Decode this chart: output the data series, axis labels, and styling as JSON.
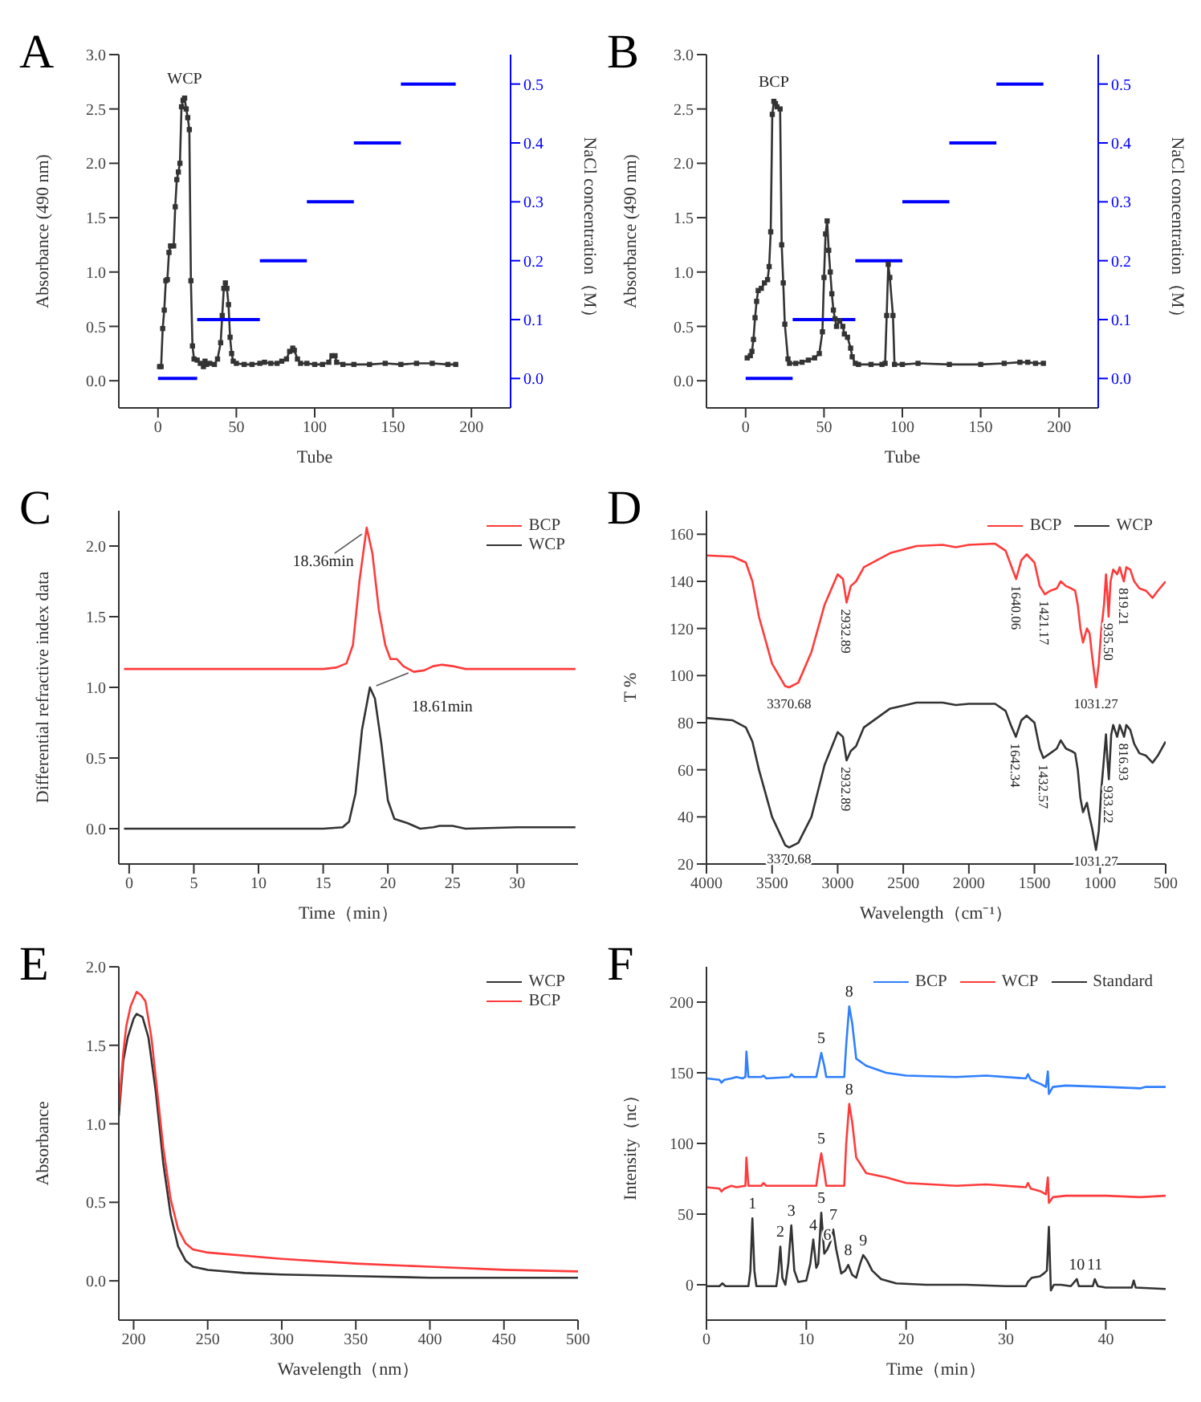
{
  "chart_data": [
    {
      "type": "line",
      "title": "A",
      "xlabel": "Tube",
      "ylabel": "Absorbance (490 nm)",
      "y2label": "NaCl concentration（M）",
      "xlim": [
        -25,
        225
      ],
      "xticks": [
        0,
        50,
        100,
        150,
        200
      ],
      "ylim": [
        -0.25,
        3
      ],
      "yticks": [
        {
          "value": 0,
          "label": "0.0"
        },
        {
          "value": 0.5,
          "label": "0.5"
        },
        {
          "value": 1,
          "label": "1.0"
        },
        {
          "value": 1.5,
          "label": "1.5"
        },
        {
          "value": 2,
          "label": "2.0"
        },
        {
          "value": 2.5,
          "label": "2.5"
        },
        {
          "value": 3,
          "label": "3.0"
        }
      ],
      "y2lim": [
        -0.05,
        0.55
      ],
      "y2ticks": [
        {
          "value": 0,
          "label": "0.0"
        },
        {
          "value": 0.1,
          "label": "0.1"
        },
        {
          "value": 0.2,
          "label": "0.2"
        },
        {
          "value": 0.3,
          "label": "0.3"
        },
        {
          "value": 0.4,
          "label": "0.4"
        },
        {
          "value": 0.5,
          "label": "0.5"
        }
      ],
      "legend": false,
      "series": [
        {
          "color": "#333333",
          "marker": "square",
          "x": [
            1,
            2,
            3,
            4,
            5,
            6,
            7,
            8,
            10,
            11,
            12,
            13,
            14,
            15,
            16,
            17,
            18,
            19,
            20,
            21,
            22,
            23,
            25,
            27,
            29,
            30,
            31,
            33,
            36,
            38,
            40,
            41,
            42,
            43,
            44,
            45,
            46,
            47,
            48,
            50,
            55,
            60,
            65,
            68,
            72,
            76,
            79,
            82,
            84,
            86,
            87,
            89,
            91,
            95,
            100,
            105,
            109,
            111,
            113,
            114,
            118,
            125,
            135,
            145,
            155,
            165,
            175,
            185,
            190
          ],
          "values": [
            0.13,
            0.13,
            0.48,
            0.65,
            0.92,
            0.93,
            1.18,
            1.24,
            1.24,
            1.6,
            1.85,
            1.92,
            2.0,
            2.52,
            2.58,
            2.6,
            2.5,
            2.42,
            2.31,
            0.92,
            0.32,
            0.2,
            0.19,
            0.16,
            0.13,
            0.18,
            0.15,
            0.16,
            0.15,
            0.2,
            0.35,
            0.6,
            0.85,
            0.9,
            0.85,
            0.7,
            0.4,
            0.25,
            0.18,
            0.16,
            0.15,
            0.15,
            0.16,
            0.17,
            0.16,
            0.16,
            0.18,
            0.2,
            0.27,
            0.3,
            0.28,
            0.2,
            0.16,
            0.16,
            0.15,
            0.15,
            0.17,
            0.23,
            0.23,
            0.17,
            0.15,
            0.15,
            0.15,
            0.16,
            0.15,
            0.16,
            0.16,
            0.15,
            0.15
          ]
        },
        {
          "color": "#0000ff",
          "axis": "y2",
          "x": [
            0,
            25
          ],
          "values": [
            0,
            0
          ]
        },
        {
          "color": "#0000ff",
          "axis": "y2",
          "x": [
            25,
            65
          ],
          "values": [
            0.1,
            0.1
          ]
        },
        {
          "color": "#0000ff",
          "axis": "y2",
          "x": [
            65,
            95
          ],
          "values": [
            0.2,
            0.2
          ]
        },
        {
          "color": "#0000ff",
          "axis": "y2",
          "x": [
            95,
            125
          ],
          "values": [
            0.3,
            0.3
          ]
        },
        {
          "color": "#0000ff",
          "axis": "y2",
          "x": [
            125,
            155
          ],
          "values": [
            0.4,
            0.4
          ]
        },
        {
          "color": "#0000ff",
          "axis": "y2",
          "x": [
            155,
            190
          ],
          "values": [
            0.5,
            0.5
          ]
        }
      ],
      "annotations": [
        {
          "text": "WCP",
          "x": 17,
          "y": 2.6
        }
      ]
    },
    {
      "type": "line",
      "title": "B",
      "xlabel": "Tube",
      "ylabel": "Absorbance (490 nm)",
      "y2label": "NaCl concentration（M）",
      "xlim": [
        -25,
        225
      ],
      "xticks": [
        0,
        50,
        100,
        150,
        200
      ],
      "ylim": [
        -0.25,
        3
      ],
      "yticks": [
        {
          "value": 0,
          "label": "0.0"
        },
        {
          "value": 0.5,
          "label": "0.5"
        },
        {
          "value": 1,
          "label": "1.0"
        },
        {
          "value": 1.5,
          "label": "1.5"
        },
        {
          "value": 2,
          "label": "2.0"
        },
        {
          "value": 2.5,
          "label": "2.5"
        },
        {
          "value": 3,
          "label": "3.0"
        }
      ],
      "y2lim": [
        -0.05,
        0.55
      ],
      "y2ticks": [
        {
          "value": 0,
          "label": "0.0"
        },
        {
          "value": 0.1,
          "label": "0.1"
        },
        {
          "value": 0.2,
          "label": "0.2"
        },
        {
          "value": 0.3,
          "label": "0.3"
        },
        {
          "value": 0.4,
          "label": "0.4"
        },
        {
          "value": 0.5,
          "label": "0.5"
        }
      ],
      "legend": false,
      "series": [
        {
          "color": "#333333",
          "marker": "square",
          "x": [
            1,
            3,
            4,
            5,
            6,
            7,
            8,
            10,
            12,
            14,
            15,
            16,
            17,
            18,
            19,
            20,
            22,
            23,
            24,
            25,
            27,
            28,
            32,
            36,
            40,
            44,
            47,
            49,
            50,
            51,
            52,
            53,
            54,
            55,
            56,
            57,
            58,
            60,
            62,
            63,
            65,
            67,
            68,
            70,
            72,
            80,
            87,
            89,
            90,
            91,
            92,
            94,
            95,
            100,
            110,
            130,
            150,
            165,
            175,
            180,
            185,
            190
          ],
          "values": [
            0.21,
            0.23,
            0.27,
            0.38,
            0.58,
            0.73,
            0.83,
            0.85,
            0.9,
            0.93,
            1.05,
            1.37,
            2.45,
            2.57,
            2.55,
            2.52,
            2.5,
            1.25,
            0.9,
            0.52,
            0.2,
            0.16,
            0.16,
            0.17,
            0.19,
            0.21,
            0.25,
            0.45,
            0.95,
            1.35,
            1.47,
            1.2,
            1.0,
            0.8,
            0.65,
            0.57,
            0.5,
            0.55,
            0.5,
            0.43,
            0.4,
            0.3,
            0.22,
            0.16,
            0.15,
            0.15,
            0.15,
            0.16,
            0.6,
            1.07,
            0.95,
            0.6,
            0.15,
            0.15,
            0.16,
            0.15,
            0.15,
            0.16,
            0.17,
            0.17,
            0.16,
            0.16
          ]
        },
        {
          "color": "#0000ff",
          "axis": "y2",
          "x": [
            0,
            30
          ],
          "values": [
            0,
            0
          ]
        },
        {
          "color": "#0000ff",
          "axis": "y2",
          "x": [
            30,
            70
          ],
          "values": [
            0.1,
            0.1
          ]
        },
        {
          "color": "#0000ff",
          "axis": "y2",
          "x": [
            70,
            100
          ],
          "values": [
            0.2,
            0.2
          ]
        },
        {
          "color": "#0000ff",
          "axis": "y2",
          "x": [
            100,
            130
          ],
          "values": [
            0.3,
            0.3
          ]
        },
        {
          "color": "#0000ff",
          "axis": "y2",
          "x": [
            130,
            160
          ],
          "values": [
            0.4,
            0.4
          ]
        },
        {
          "color": "#0000ff",
          "axis": "y2",
          "x": [
            160,
            190
          ],
          "values": [
            0.5,
            0.5
          ]
        }
      ],
      "annotations": [
        {
          "text": "BCP",
          "x": 18,
          "y": 2.57
        }
      ]
    },
    {
      "type": "line",
      "title": "C",
      "xlabel": "Time（min）",
      "ylabel": "Differential refractive index data",
      "xlim": [
        -0.8,
        34.7
      ],
      "xticks": [
        0,
        5,
        10,
        15,
        20,
        25,
        30
      ],
      "ylim": [
        -0.25,
        2.25
      ],
      "yticks": [
        {
          "value": 0,
          "label": "0.0"
        },
        {
          "value": 0.5,
          "label": "0.5"
        },
        {
          "value": 1,
          "label": "1.0"
        },
        {
          "value": 1.5,
          "label": "1.5"
        },
        {
          "value": 2,
          "label": "2.0"
        }
      ],
      "legend": "top right",
      "series": [
        {
          "name": "BCP",
          "color": "#ff3b3b",
          "x": [
            -0.4,
            5,
            10,
            15,
            16,
            16.8,
            17.3,
            17.8,
            18.36,
            18.8,
            19.3,
            19.8,
            20.2,
            20.7,
            21.2,
            22,
            22.8,
            23.5,
            24.2,
            25,
            26,
            28,
            30,
            34.5
          ],
          "values": [
            1.13,
            1.13,
            1.13,
            1.13,
            1.14,
            1.17,
            1.3,
            1.75,
            2.13,
            1.95,
            1.55,
            1.3,
            1.2,
            1.2,
            1.15,
            1.11,
            1.12,
            1.15,
            1.16,
            1.15,
            1.13,
            1.13,
            1.13,
            1.13
          ]
        },
        {
          "name": "WCP",
          "color": "#333333",
          "x": [
            -0.4,
            5,
            10,
            15,
            16.5,
            17,
            17.5,
            18,
            18.61,
            19,
            19.5,
            20,
            20.5,
            21.5,
            22.5,
            23.5,
            24,
            25,
            26,
            30,
            34.5
          ],
          "values": [
            0,
            0,
            0,
            0,
            0.01,
            0.05,
            0.25,
            0.7,
            1.0,
            0.92,
            0.6,
            0.2,
            0.07,
            0.04,
            0,
            0.01,
            0.02,
            0.02,
            0,
            0.01,
            0.01
          ]
        }
      ],
      "annotations": [
        {
          "text": "18.36min",
          "x": 18.36,
          "y": 2.13
        },
        {
          "text": "18.61min",
          "x": 18.61,
          "y": 1.0
        }
      ]
    },
    {
      "type": "line",
      "title": "D",
      "xlabel": "Wavelength（cm⁻¹）",
      "ylabel": "T %",
      "xlim": [
        4000,
        500
      ],
      "xticks": [
        4000,
        3500,
        3000,
        2500,
        2000,
        1500,
        1000,
        500
      ],
      "ylim": [
        20,
        170
      ],
      "yticks": [
        20,
        40,
        60,
        80,
        100,
        120,
        140,
        160
      ],
      "legend": "top right",
      "series": [
        {
          "name": "BCP",
          "color": "#ff3b3b",
          "x": [
            4000,
            3800,
            3700,
            3650,
            3600,
            3500,
            3400,
            3370,
            3300,
            3200,
            3100,
            3000,
            2960,
            2932,
            2900,
            2860,
            2800,
            2600,
            2400,
            2200,
            2100,
            2000,
            1800,
            1720,
            1680,
            1640,
            1600,
            1560,
            1500,
            1460,
            1421,
            1380,
            1330,
            1300,
            1260,
            1220,
            1190,
            1170,
            1150,
            1130,
            1100,
            1080,
            1060,
            1031,
            1010,
            990,
            970,
            955,
            945,
            935,
            920,
            900,
            870,
            850,
            830,
            819,
            800,
            770,
            740,
            700,
            650,
            600,
            560,
            500
          ],
          "values": [
            151,
            150.5,
            148,
            140,
            125,
            105,
            95.5,
            95,
            97,
            110,
            130,
            143,
            141,
            131,
            138,
            140,
            146,
            152,
            155,
            155.5,
            154.5,
            155.5,
            156,
            153,
            147,
            141,
            149,
            151.5,
            148,
            138,
            134.5,
            136,
            137,
            140,
            138,
            137,
            136,
            130,
            120,
            114,
            120,
            118,
            108,
            95,
            105,
            120,
            130,
            143,
            135,
            125,
            140,
            145,
            143,
            146,
            142,
            140,
            146,
            145,
            140,
            137,
            136,
            133,
            136,
            140
          ]
        },
        {
          "name": "WCP",
          "color": "#333333",
          "x": [
            4000,
            3800,
            3700,
            3650,
            3600,
            3500,
            3400,
            3370,
            3300,
            3200,
            3100,
            3000,
            2960,
            2932,
            2900,
            2860,
            2800,
            2600,
            2400,
            2200,
            2100,
            2000,
            1800,
            1720,
            1680,
            1642,
            1600,
            1560,
            1500,
            1460,
            1432,
            1380,
            1330,
            1300,
            1260,
            1220,
            1190,
            1170,
            1150,
            1130,
            1100,
            1080,
            1060,
            1031,
            1010,
            990,
            970,
            955,
            945,
            933,
            915,
            900,
            870,
            850,
            830,
            817,
            800,
            770,
            740,
            700,
            650,
            600,
            560,
            500
          ],
          "values": [
            82,
            81,
            78,
            72,
            60,
            40,
            28,
            27,
            29,
            40,
            62,
            76,
            74,
            64,
            68,
            70,
            78,
            86,
            88.5,
            88.5,
            87.5,
            88,
            88,
            85,
            79,
            74,
            81,
            83,
            80,
            69,
            65,
            67,
            69,
            72.5,
            69,
            68,
            67,
            60,
            48,
            42,
            46,
            40,
            35,
            26,
            34,
            52,
            65,
            75,
            65,
            56,
            75,
            79,
            74,
            79,
            76,
            74,
            79,
            77,
            71,
            67,
            66,
            63,
            66,
            72
          ]
        }
      ],
      "annotations": [
        {
          "text": "3370.68",
          "x": 3370.68,
          "y": 95
        },
        {
          "text": "2932.89",
          "x": 2932.89,
          "y": 131
        },
        {
          "text": "1640.06",
          "x": 1640.06,
          "y": 141
        },
        {
          "text": "1421.17",
          "x": 1421.17,
          "y": 134.5
        },
        {
          "text": "1031.27",
          "x": 1031.27,
          "y": 95
        },
        {
          "text": "935.50",
          "x": 935.5,
          "y": 125
        },
        {
          "text": "819.21",
          "x": 819.21,
          "y": 140
        },
        {
          "text": "3370.68",
          "x": 3370.68,
          "y": 27
        },
        {
          "text": "2932.89",
          "x": 2932.89,
          "y": 64
        },
        {
          "text": "1642.34",
          "x": 1642.34,
          "y": 74
        },
        {
          "text": "1432.57",
          "x": 1432.57,
          "y": 65
        },
        {
          "text": "1031.27",
          "x": 1031.27,
          "y": 26
        },
        {
          "text": "933.22",
          "x": 933.22,
          "y": 56
        },
        {
          "text": "816.93",
          "x": 816.93,
          "y": 74
        }
      ]
    },
    {
      "type": "line",
      "title": "E",
      "xlabel": "Wavelength（nm）",
      "ylabel": "Absorbance",
      "xlim": [
        190,
        500
      ],
      "xticks": [
        200,
        250,
        300,
        350,
        400,
        450,
        500
      ],
      "ylim": [
        -0.25,
        2
      ],
      "yticks": [
        {
          "value": 0,
          "label": "0.0"
        },
        {
          "value": 0.5,
          "label": "0.5"
        },
        {
          "value": 1,
          "label": "1.0"
        },
        {
          "value": 1.5,
          "label": "1.5"
        },
        {
          "value": 2,
          "label": "2.0"
        }
      ],
      "legend": "top right",
      "series": [
        {
          "name": "WCP",
          "color": "#333333",
          "x": [
            190,
            193,
            196,
            200,
            202,
            206,
            210,
            215,
            220,
            225,
            230,
            235,
            240,
            250,
            275,
            300,
            350,
            400,
            450,
            500
          ],
          "values": [
            1.05,
            1.4,
            1.55,
            1.67,
            1.7,
            1.68,
            1.55,
            1.2,
            0.75,
            0.42,
            0.22,
            0.13,
            0.09,
            0.07,
            0.05,
            0.04,
            0.03,
            0.02,
            0.02,
            0.02
          ]
        },
        {
          "name": "BCP",
          "color": "#ff3b3b",
          "x": [
            190,
            193,
            195,
            198,
            202,
            205,
            208,
            212,
            216,
            220,
            225,
            230,
            235,
            240,
            250,
            300,
            350,
            400,
            450,
            500
          ],
          "values": [
            1.1,
            1.45,
            1.62,
            1.75,
            1.84,
            1.82,
            1.78,
            1.55,
            1.2,
            0.85,
            0.52,
            0.33,
            0.24,
            0.2,
            0.18,
            0.14,
            0.11,
            0.09,
            0.07,
            0.06
          ]
        }
      ]
    },
    {
      "type": "line",
      "title": "F",
      "xlabel": "Time（min）",
      "ylabel": "Intensity（nc）",
      "xlim": [
        0,
        46
      ],
      "xticks": [
        0,
        10,
        20,
        30,
        40
      ],
      "ylim": [
        -25,
        225
      ],
      "yticks": [
        0,
        50,
        100,
        150,
        200
      ],
      "legend": "top right",
      "series": [
        {
          "name": "BCP",
          "color": "#2f7fff",
          "x": [
            0,
            1.3,
            1.5,
            1.8,
            2.5,
            3,
            3.6,
            3.9,
            4.0,
            4.2,
            5.5,
            5.7,
            6,
            8.3,
            8.5,
            8.8,
            11,
            11.3,
            11.5,
            11.8,
            12,
            13.8,
            14,
            14.3,
            14.6,
            15,
            16,
            18,
            20,
            25,
            28,
            32,
            32.2,
            32.5,
            33.5,
            34,
            34.2,
            34.3,
            34.7,
            36,
            40,
            43.5,
            44,
            46
          ],
          "values": [
            146,
            145,
            143,
            145,
            146,
            147,
            146,
            147,
            165,
            147,
            147,
            148,
            146,
            147,
            149,
            147,
            147,
            157,
            164,
            155,
            147,
            147,
            170,
            197,
            185,
            160,
            155,
            150,
            148,
            147,
            148,
            146,
            149,
            145,
            142,
            140,
            151,
            135,
            140,
            141,
            140,
            139,
            140,
            140
          ]
        },
        {
          "name": "WCP",
          "color": "#ff3b3b",
          "x": [
            0,
            1.3,
            1.5,
            1.8,
            2.5,
            3,
            3.9,
            4.0,
            4.2,
            5.5,
            5.7,
            6,
            11,
            11.3,
            11.5,
            11.8,
            12,
            13.8,
            14,
            14.3,
            14.6,
            15,
            16,
            18,
            20,
            25,
            28,
            32,
            32.2,
            32.5,
            33.5,
            34,
            34.2,
            34.3,
            34.7,
            36,
            40,
            43.5,
            46
          ],
          "values": [
            69,
            68,
            66,
            68,
            70,
            69,
            70,
            90,
            70,
            70,
            72,
            70,
            70,
            85,
            93,
            80,
            70,
            70,
            100,
            128,
            115,
            90,
            79,
            76,
            72,
            70,
            71,
            69,
            72,
            68,
            66,
            64,
            76,
            58,
            62,
            63,
            63,
            62,
            63
          ]
        },
        {
          "name": "Standard",
          "color": "#333333",
          "x": [
            0,
            1.3,
            1.6,
            1.9,
            4.2,
            4.4,
            4.6,
            4.8,
            5,
            7,
            7.2,
            7.4,
            7.6,
            7.9,
            8.2,
            8.5,
            8.8,
            9.2,
            10,
            10.4,
            10.7,
            11,
            11.2,
            11.5,
            11.8,
            12.1,
            12.4,
            12.7,
            13,
            13.5,
            13.9,
            14.2,
            14.6,
            15,
            15.4,
            15.7,
            16.1,
            16.6,
            17.5,
            19,
            22,
            26,
            30,
            32,
            32.2,
            32.6,
            33.4,
            33.8,
            34.1,
            34.3,
            34.5,
            34.8,
            35.5,
            36.5,
            37.1,
            37.3,
            38.7,
            38.9,
            39.2,
            40,
            42.6,
            42.8,
            43,
            46
          ],
          "values": [
            -1,
            -1,
            1,
            -1,
            -1,
            10,
            47,
            10,
            -1,
            -1,
            10,
            27,
            5,
            0,
            15,
            42,
            10,
            2,
            3,
            15,
            32,
            12,
            15,
            51,
            22,
            25,
            30,
            39,
            25,
            8,
            10,
            14,
            7,
            5,
            15,
            21,
            17,
            10,
            4,
            1,
            0,
            0,
            -1,
            -1,
            2,
            5,
            6,
            8,
            10,
            41,
            -4,
            0,
            0,
            -1,
            4,
            -1,
            -1,
            4,
            -1,
            -2,
            -2,
            3,
            -2,
            -3
          ]
        }
      ],
      "annotations": [
        {
          "text": "5",
          "x": 11.5,
          "y": 164
        },
        {
          "text": "8",
          "x": 14.3,
          "y": 197
        },
        {
          "text": "5",
          "x": 11.5,
          "y": 93
        },
        {
          "text": "8",
          "x": 14.3,
          "y": 128
        },
        {
          "text": "1",
          "x": 4.6,
          "y": 47
        },
        {
          "text": "2",
          "x": 7.4,
          "y": 27
        },
        {
          "text": "3",
          "x": 8.5,
          "y": 42
        },
        {
          "text": "4",
          "x": 10.7,
          "y": 32
        },
        {
          "text": "5",
          "x": 11.5,
          "y": 51
        },
        {
          "text": "6",
          "x": 12.1,
          "y": 25
        },
        {
          "text": "7",
          "x": 12.7,
          "y": 39
        },
        {
          "text": "8",
          "x": 14.2,
          "y": 14
        },
        {
          "text": "9",
          "x": 15.7,
          "y": 21
        },
        {
          "text": "10",
          "x": 37.1,
          "y": 4
        },
        {
          "text": "11",
          "x": 38.9,
          "y": 4
        }
      ]
    }
  ]
}
